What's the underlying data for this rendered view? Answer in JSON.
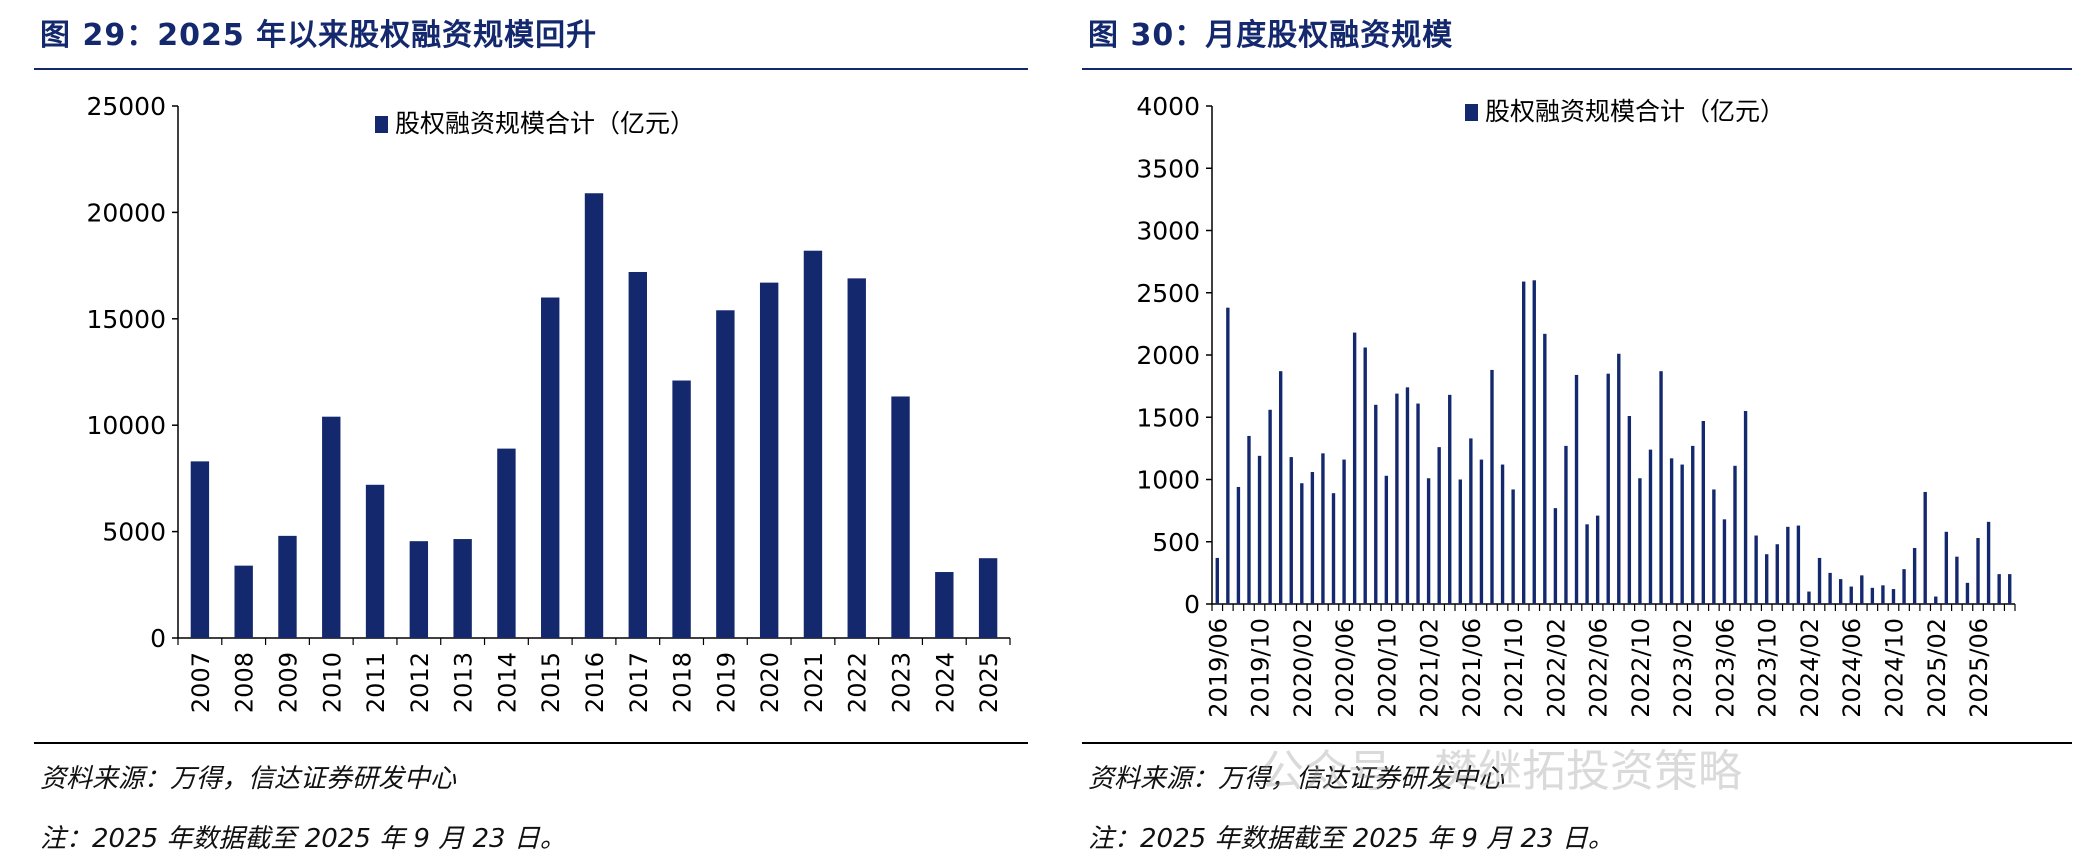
{
  "figures": [
    {
      "title": "图 29：2025 年以来股权融资规模回升",
      "source": "资料来源：万得，信达证券研发中心",
      "note": "注：2025 年数据截至 2025 年 9 月 23 日。"
    },
    {
      "title": "图 30：月度股权融资规模",
      "source": "资料来源：万得，信达证券研发中心",
      "note": "注：2025 年数据截至 2025 年 9 月 23 日。"
    }
  ],
  "watermark": "公众号 · 樊继拓投资策略",
  "colors": {
    "bar": "#14286e",
    "title": "#14286e",
    "axis": "#000000"
  },
  "chart_data": [
    {
      "type": "bar",
      "legend": "股权融资规模合计（亿元）",
      "legend_position": "top-center",
      "grid": false,
      "categories": [
        "2007",
        "2008",
        "2009",
        "2010",
        "2011",
        "2012",
        "2013",
        "2014",
        "2015",
        "2016",
        "2017",
        "2018",
        "2019",
        "2020",
        "2021",
        "2022",
        "2023",
        "2024",
        "2025"
      ],
      "values": [
        8300,
        3400,
        4800,
        10400,
        7200,
        4550,
        4650,
        8900,
        16000,
        20900,
        17200,
        12100,
        15400,
        16700,
        18200,
        16900,
        11350,
        3100,
        3750
      ],
      "ylim": [
        0,
        25000
      ],
      "yticks": [
        0,
        5000,
        10000,
        15000,
        20000,
        25000
      ]
    },
    {
      "type": "bar",
      "legend": "股权融资规模合计（亿元）",
      "legend_position": "top-center",
      "grid": false,
      "categories": [
        "2019/06",
        "2019/07",
        "2019/08",
        "2019/09",
        "2019/10",
        "2019/11",
        "2019/12",
        "2020/01",
        "2020/02",
        "2020/03",
        "2020/04",
        "2020/05",
        "2020/06",
        "2020/07",
        "2020/08",
        "2020/09",
        "2020/10",
        "2020/11",
        "2020/12",
        "2021/01",
        "2021/02",
        "2021/03",
        "2021/04",
        "2021/05",
        "2021/06",
        "2021/07",
        "2021/08",
        "2021/09",
        "2021/10",
        "2021/11",
        "2021/12",
        "2022/01",
        "2022/02",
        "2022/03",
        "2022/04",
        "2022/05",
        "2022/06",
        "2022/07",
        "2022/08",
        "2022/09",
        "2022/10",
        "2022/11",
        "2022/12",
        "2023/01",
        "2023/02",
        "2023/03",
        "2023/04",
        "2023/05",
        "2023/06",
        "2023/07",
        "2023/08",
        "2023/09",
        "2023/10",
        "2023/11",
        "2023/12",
        "2024/01",
        "2024/02",
        "2024/03",
        "2024/04",
        "2024/05",
        "2024/06",
        "2024/07",
        "2024/08",
        "2024/09",
        "2024/10",
        "2024/11",
        "2024/12",
        "2025/01",
        "2025/02",
        "2025/03",
        "2025/04",
        "2025/05",
        "2025/06",
        "2025/07",
        "2025/08",
        "2025/09"
      ],
      "tick_labels": [
        "2019/06",
        "2019/10",
        "2020/02",
        "2020/06",
        "2020/10",
        "2021/02",
        "2021/06",
        "2021/10",
        "2022/02",
        "2022/06",
        "2022/10",
        "2023/02",
        "2023/06",
        "2023/10",
        "2024/02",
        "2024/06",
        "2024/10",
        "2025/02",
        "2025/06"
      ],
      "values": [
        370,
        2380,
        940,
        1350,
        1190,
        1560,
        1870,
        1180,
        970,
        1060,
        1210,
        890,
        1160,
        2180,
        2060,
        1600,
        1030,
        1690,
        1740,
        1610,
        1010,
        1260,
        1680,
        1000,
        1330,
        1160,
        1880,
        1120,
        920,
        2590,
        2600,
        2170,
        770,
        1270,
        1840,
        640,
        710,
        1850,
        2010,
        1510,
        1010,
        1240,
        1870,
        1170,
        1120,
        1270,
        1470,
        920,
        680,
        1110,
        1550,
        550,
        400,
        480,
        620,
        630,
        100,
        370,
        250,
        200,
        140,
        230,
        130,
        150,
        120,
        280,
        450,
        900,
        60,
        580,
        380,
        170,
        530,
        660,
        240,
        240
      ],
      "ylim": [
        0,
        4000
      ],
      "yticks": [
        0,
        500,
        1000,
        1500,
        2000,
        2500,
        3000,
        3500,
        4000
      ]
    }
  ]
}
